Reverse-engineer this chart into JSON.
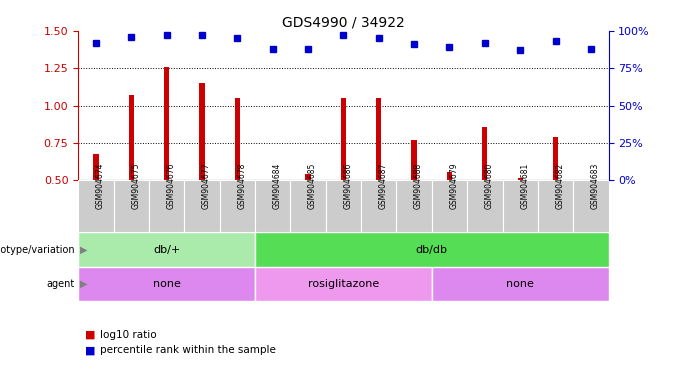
{
  "title": "GDS4990 / 34922",
  "samples": [
    "GSM904674",
    "GSM904675",
    "GSM904676",
    "GSM904677",
    "GSM904678",
    "GSM904684",
    "GSM904685",
    "GSM904686",
    "GSM904687",
    "GSM904688",
    "GSM904679",
    "GSM904680",
    "GSM904681",
    "GSM904682",
    "GSM904683"
  ],
  "log10_ratio": [
    0.68,
    1.07,
    1.26,
    1.15,
    1.05,
    0.505,
    0.545,
    1.05,
    1.05,
    0.77,
    0.555,
    0.86,
    0.515,
    0.79,
    0.505
  ],
  "percentile_rank": [
    92,
    96,
    97,
    97,
    95,
    88,
    88,
    97,
    95,
    91,
    89,
    92,
    87,
    93,
    88
  ],
  "ylim_left": [
    0.5,
    1.5
  ],
  "ylim_right": [
    0,
    100
  ],
  "yticks_left": [
    0.5,
    0.75,
    1.0,
    1.25,
    1.5
  ],
  "yticks_right": [
    0,
    25,
    50,
    75,
    100
  ],
  "dotted_lines": [
    0.75,
    1.0,
    1.25
  ],
  "genotype_groups": [
    {
      "label": "db/+",
      "start": 0,
      "end": 5,
      "color": "#aaeaaa"
    },
    {
      "label": "db/db",
      "start": 5,
      "end": 15,
      "color": "#55dd55"
    }
  ],
  "agent_groups": [
    {
      "label": "none",
      "start": 0,
      "end": 5,
      "color": "#dd88ee"
    },
    {
      "label": "rosiglitazone",
      "start": 5,
      "end": 10,
      "color": "#ee99ee"
    },
    {
      "label": "none",
      "start": 10,
      "end": 15,
      "color": "#dd88ee"
    }
  ],
  "bar_color": "#cc0000",
  "dot_color": "#0000cc",
  "bar_bottom": 0.5,
  "bar_width": 0.15,
  "label_row_color": "#cccccc",
  "legend_items": [
    {
      "color": "#cc0000",
      "label": "log10 ratio"
    },
    {
      "color": "#0000cc",
      "label": "percentile rank within the sample"
    }
  ],
  "left_label_color": "#cc0000",
  "right_label_color": "#0000cc"
}
